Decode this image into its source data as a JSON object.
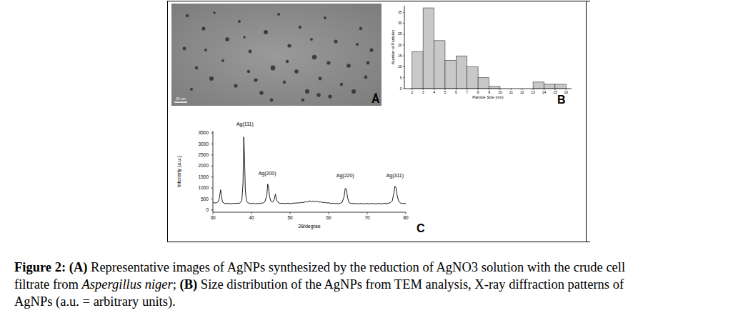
{
  "image": {
    "panel_label": "A",
    "scale_bar": "20 nm"
  },
  "chart_data": [
    {
      "type": "histogram",
      "panel_label": "B",
      "x_label": "Particle Size (nm)",
      "y_label": "Number of Particles",
      "bins": [
        2,
        3,
        4,
        5,
        6,
        7,
        8,
        9,
        10,
        11,
        12,
        13,
        14,
        15,
        16
      ],
      "values": [
        17,
        37,
        22,
        13,
        15,
        10,
        5,
        1,
        0,
        0,
        0,
        3,
        2,
        2
      ],
      "color": "#c8c8c8",
      "xlim": [
        1.3,
        16.5
      ],
      "xticks": [
        2,
        3,
        4,
        5,
        6,
        7,
        8,
        9,
        10,
        11,
        12,
        13,
        14,
        15,
        16
      ],
      "ylim": [
        0,
        38
      ],
      "yticks": [
        0,
        5,
        10,
        15,
        20,
        25,
        30,
        35
      ],
      "grid": false
    },
    {
      "type": "line",
      "panel_label": "C",
      "x_label": "2θ/degree",
      "y_label": "Intensity (a.u.)",
      "color": "#000000",
      "x": [
        30.0,
        30.5,
        31.0,
        31.5,
        31.8,
        32.0,
        32.2,
        32.5,
        33.0,
        33.5,
        34.0,
        34.5,
        35.0,
        35.5,
        36.0,
        36.5,
        37.0,
        37.5,
        37.8,
        38.0,
        38.2,
        38.4,
        38.7,
        39.0,
        39.5,
        40.0,
        40.5,
        41.0,
        41.5,
        42.0,
        42.5,
        43.0,
        43.5,
        44.0,
        44.2,
        44.4,
        44.7,
        45.0,
        45.5,
        45.9,
        46.2,
        46.5,
        47.0,
        47.5,
        48.0,
        48.5,
        49.0,
        49.5,
        50.0,
        50.5,
        51.0,
        51.5,
        52.0,
        52.5,
        53.0,
        53.5,
        54.0,
        54.5,
        55.0,
        55.5,
        56.0,
        56.5,
        57.0,
        57.5,
        58.0,
        58.5,
        59.0,
        59.5,
        60.0,
        60.5,
        61.0,
        61.5,
        62.0,
        62.5,
        63.0,
        63.5,
        64.0,
        64.3,
        64.6,
        64.9,
        65.3,
        65.8,
        66.5,
        67.0,
        67.5,
        68.0,
        68.5,
        69.0,
        69.5,
        70.0,
        70.5,
        71.0,
        71.5,
        72.0,
        72.5,
        73.0,
        73.5,
        74.0,
        74.5,
        75.0,
        75.5,
        76.0,
        76.5,
        76.9,
        77.2,
        77.5,
        77.8,
        78.2,
        78.7,
        79.2,
        79.7,
        80.0
      ],
      "values": [
        350,
        320,
        330,
        400,
        700,
        920,
        650,
        360,
        300,
        290,
        310,
        280,
        300,
        290,
        310,
        300,
        320,
        420,
        1200,
        3320,
        2400,
        900,
        420,
        340,
        300,
        290,
        310,
        280,
        300,
        290,
        310,
        320,
        380,
        700,
        1180,
        1050,
        600,
        420,
        360,
        480,
        720,
        450,
        330,
        300,
        310,
        290,
        300,
        310,
        290,
        300,
        320,
        310,
        330,
        320,
        350,
        340,
        380,
        360,
        420,
        390,
        410,
        380,
        400,
        360,
        370,
        340,
        350,
        320,
        330,
        300,
        310,
        290,
        300,
        290,
        310,
        350,
        600,
        980,
        950,
        560,
        340,
        300,
        290,
        300,
        280,
        290,
        300,
        280,
        290,
        300,
        280,
        290,
        300,
        280,
        290,
        300,
        280,
        290,
        300,
        290,
        310,
        330,
        420,
        750,
        1080,
        1000,
        620,
        380,
        310,
        290,
        300,
        290
      ],
      "xlim": [
        30,
        80
      ],
      "xticks": [
        30,
        40,
        50,
        60,
        70,
        80
      ],
      "ylim": [
        -100,
        3600
      ],
      "yticks": [
        0,
        500,
        1000,
        1500,
        2000,
        2500,
        3000,
        3500
      ],
      "annotations": [
        {
          "text": "Ag(111)",
          "x": 38.3,
          "y": 3820
        },
        {
          "text": "Ag(200)",
          "x": 44.1,
          "y": 1590
        },
        {
          "text": "Ag(220)",
          "x": 64.3,
          "y": 1490
        },
        {
          "text": "Ag(311)",
          "x": 77.2,
          "y": 1490
        }
      ],
      "grid": false
    }
  ],
  "caption": {
    "lines": [
      [
        {
          "text": "Figure 2:",
          "bold": true
        },
        {
          "text": " "
        },
        {
          "text": "(A)",
          "bold": true
        },
        {
          "text": " Representative images of AgNPs synthesized by the reduction of AgNO3 solution with the crude cell"
        }
      ],
      [
        {
          "text": "filtrate from "
        },
        {
          "text": "Aspergillus niger",
          "italic": true
        },
        {
          "text": "; "
        },
        {
          "text": "(B)",
          "bold": true
        },
        {
          "text": " Size distribution of the AgNPs from TEM analysis, X-ray diffraction patterns of"
        }
      ],
      [
        {
          "text": "AgNPs (a.u. = arbitrary units)."
        }
      ]
    ]
  }
}
